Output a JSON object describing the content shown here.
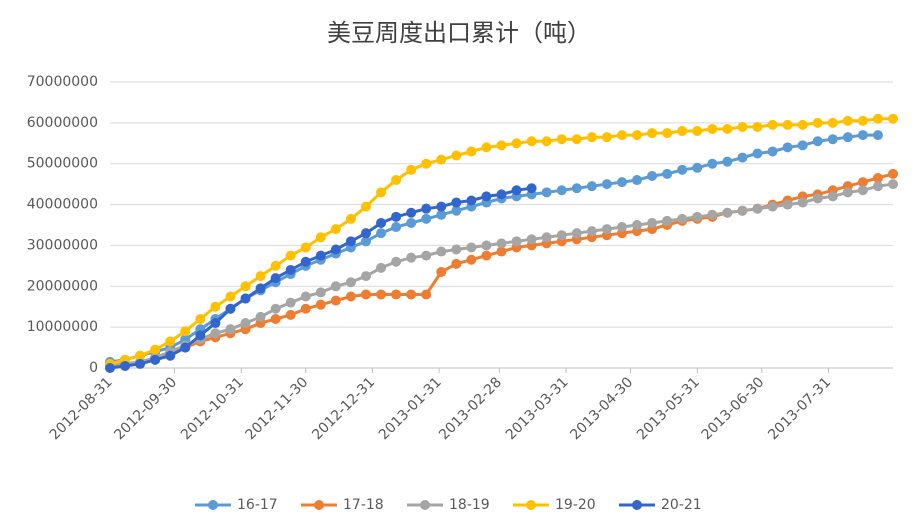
{
  "chart_data": {
    "type": "line",
    "title": "美豆周度出口累计（吨）",
    "x": [
      "2012-08-31",
      "2012-09-07",
      "2012-09-14",
      "2012-09-21",
      "2012-09-28",
      "2012-10-05",
      "2012-10-12",
      "2012-10-19",
      "2012-10-26",
      "2012-11-02",
      "2012-11-09",
      "2012-11-16",
      "2012-11-23",
      "2012-11-30",
      "2012-12-07",
      "2012-12-14",
      "2012-12-21",
      "2012-12-28",
      "2013-01-04",
      "2013-01-11",
      "2013-01-18",
      "2013-01-25",
      "2013-02-01",
      "2013-02-08",
      "2013-02-15",
      "2013-02-22",
      "2013-03-01",
      "2013-03-08",
      "2013-03-15",
      "2013-03-22",
      "2013-03-29",
      "2013-04-05",
      "2013-04-12",
      "2013-04-19",
      "2013-04-26",
      "2013-05-03",
      "2013-05-10",
      "2013-05-17",
      "2013-05-24",
      "2013-05-31",
      "2013-06-07",
      "2013-06-14",
      "2013-06-21",
      "2013-06-28",
      "2013-07-05",
      "2013-07-12",
      "2013-07-19",
      "2013-07-26",
      "2013-08-02",
      "2013-08-09",
      "2013-08-16",
      "2013-08-23",
      "2013-08-30"
    ],
    "xlim": [
      "2012-08-31",
      "2013-08-30"
    ],
    "xticks": [
      "2012-08-31",
      "2012-09-30",
      "2012-10-31",
      "2012-11-30",
      "2012-12-31",
      "2013-01-31",
      "2013-02-28",
      "2013-03-31",
      "2013-04-30",
      "2013-05-31",
      "2013-06-30",
      "2013-07-31"
    ],
    "ylim": [
      0,
      70000000
    ],
    "yticks": [
      0,
      10000000,
      20000000,
      30000000,
      40000000,
      50000000,
      60000000,
      70000000
    ],
    "grid": true,
    "legend": "bottom",
    "series": [
      {
        "name": "16-17",
        "color": "#5b9bd5",
        "values": [
          1500000,
          2000000,
          3000000,
          4000000,
          5000000,
          7000000,
          9500000,
          12000000,
          14500000,
          17000000,
          19000000,
          21000000,
          23000000,
          25000000,
          26500000,
          28000000,
          29500000,
          31000000,
          33000000,
          34500000,
          35500000,
          36500000,
          37500000,
          38500000,
          39500000,
          40500000,
          41500000,
          42000000,
          42500000,
          43000000,
          43500000,
          44000000,
          44500000,
          45000000,
          45500000,
          46000000,
          47000000,
          47500000,
          48500000,
          49000000,
          50000000,
          50500000,
          51500000,
          52500000,
          53000000,
          54000000,
          54500000,
          55500000,
          56000000,
          56500000,
          57000000,
          57000000,
          null
        ]
      },
      {
        "name": "17-18",
        "color": "#ed7d31",
        "values": [
          500000,
          1000000,
          1500000,
          2500000,
          3500000,
          5000000,
          6500000,
          7500000,
          8500000,
          9500000,
          11000000,
          12000000,
          13000000,
          14500000,
          15500000,
          16500000,
          17500000,
          18000000,
          18000000,
          18000000,
          18000000,
          18000000,
          23500000,
          25500000,
          26500000,
          27500000,
          28500000,
          29500000,
          30000000,
          30500000,
          31000000,
          31500000,
          32000000,
          32500000,
          33000000,
          33500000,
          34000000,
          35000000,
          36000000,
          36500000,
          37000000,
          38000000,
          38500000,
          39000000,
          40000000,
          41000000,
          42000000,
          42500000,
          43500000,
          44500000,
          45500000,
          46500000,
          47500000
        ]
      },
      {
        "name": "18-19",
        "color": "#a5a5a5",
        "values": [
          500000,
          1000000,
          1500000,
          2500000,
          4000000,
          5500000,
          7000000,
          8500000,
          9500000,
          11000000,
          12500000,
          14500000,
          16000000,
          17500000,
          18500000,
          20000000,
          21000000,
          22500000,
          24500000,
          26000000,
          27000000,
          27500000,
          28500000,
          29000000,
          29500000,
          30000000,
          30500000,
          31000000,
          31500000,
          32000000,
          32500000,
          33000000,
          33500000,
          34000000,
          34500000,
          35000000,
          35500000,
          36000000,
          36500000,
          37000000,
          37500000,
          38000000,
          38500000,
          39000000,
          39500000,
          40000000,
          40500000,
          41500000,
          42000000,
          43000000,
          43500000,
          44500000,
          45000000
        ]
      },
      {
        "name": "19-20",
        "color": "#ffc000",
        "values": [
          1000000,
          2000000,
          3000000,
          4500000,
          6500000,
          9000000,
          12000000,
          15000000,
          17500000,
          20000000,
          22500000,
          25000000,
          27500000,
          29500000,
          32000000,
          34000000,
          36500000,
          39500000,
          43000000,
          46000000,
          48500000,
          50000000,
          51000000,
          52000000,
          53000000,
          54000000,
          54500000,
          55000000,
          55500000,
          55500000,
          56000000,
          56000000,
          56500000,
          56500000,
          57000000,
          57000000,
          57500000,
          57500000,
          58000000,
          58000000,
          58500000,
          58500000,
          59000000,
          59000000,
          59500000,
          59500000,
          59500000,
          60000000,
          60000000,
          60500000,
          60500000,
          61000000,
          61000000
        ]
      },
      {
        "name": "20-21",
        "color": "#3366cc",
        "values": [
          0,
          500000,
          1000000,
          2000000,
          3000000,
          5000000,
          8000000,
          11000000,
          14500000,
          17000000,
          19500000,
          22000000,
          24000000,
          26000000,
          27500000,
          29000000,
          31000000,
          33000000,
          35500000,
          37000000,
          38000000,
          39000000,
          39500000,
          40500000,
          41000000,
          42000000,
          42500000,
          43500000,
          44000000,
          null,
          null,
          null,
          null,
          null,
          null,
          null,
          null,
          null,
          null,
          null,
          null,
          null,
          null,
          null,
          null,
          null,
          null,
          null,
          null,
          null,
          null,
          null,
          null
        ]
      }
    ]
  }
}
